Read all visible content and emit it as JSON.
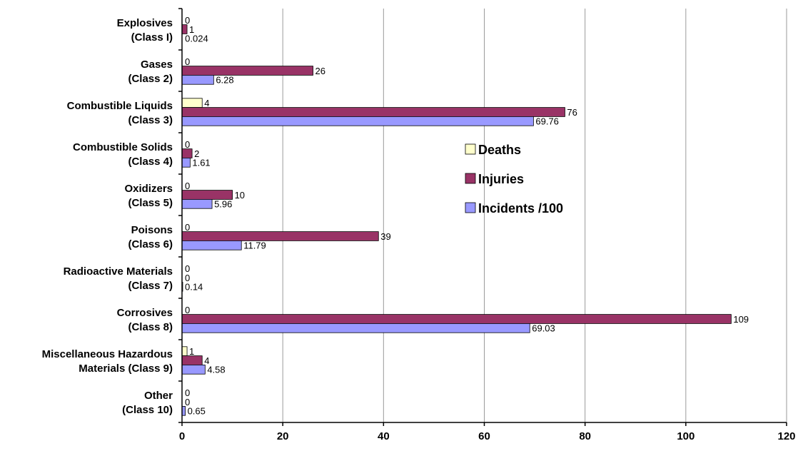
{
  "chart_data": {
    "type": "bar",
    "orientation": "horizontal",
    "title": "",
    "xlabel": "",
    "ylabel": "",
    "xlim": [
      0,
      120
    ],
    "x_ticks": [
      "0",
      "20",
      "40",
      "60",
      "80",
      "100",
      "120"
    ],
    "grid": true,
    "legend_position": "center-right",
    "categories": [
      [
        "Explosives",
        "(Class I)"
      ],
      [
        "Gases",
        "(Class 2)"
      ],
      [
        "Combustible Liquids",
        "(Class 3)"
      ],
      [
        "Combustible Solids",
        "(Class 4)"
      ],
      [
        "Oxidizers",
        "(Class 5)"
      ],
      [
        "Poisons",
        "(Class 6)"
      ],
      [
        "Radioactive Materials",
        "(Class 7)"
      ],
      [
        "Corrosives",
        "(Class 8)"
      ],
      [
        "Miscellaneous Hazardous",
        "Materials (Class 9)"
      ],
      [
        "Other",
        "(Class 10)"
      ]
    ],
    "series": [
      {
        "name": "Deaths",
        "color": "#ffffcc",
        "values": [
          0,
          0,
          4,
          0,
          0,
          0,
          0,
          0,
          1,
          0
        ],
        "labels": [
          "0",
          "0",
          "4",
          "0",
          "0",
          "0",
          "0",
          "0",
          "1",
          "0"
        ]
      },
      {
        "name": "Injuries",
        "color": "#993366",
        "values": [
          1,
          26,
          76,
          2,
          10,
          39,
          0,
          109,
          4,
          0
        ],
        "labels": [
          "1",
          "26",
          "76",
          "2",
          "10",
          "39",
          "0",
          "109",
          "4",
          "0"
        ]
      },
      {
        "name": "Incidents /100",
        "color": "#9999ff",
        "values": [
          0.024,
          6.28,
          69.76,
          1.61,
          5.96,
          11.79,
          0.14,
          69.03,
          4.58,
          0.65
        ],
        "labels": [
          "0.024",
          "6.28",
          "69.76",
          "1.61",
          "5.96",
          "11.79",
          "0.14",
          "69.03",
          "4.58",
          "0.65"
        ]
      }
    ]
  }
}
